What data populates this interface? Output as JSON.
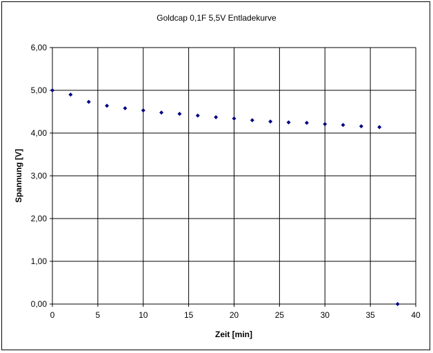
{
  "chart_data": {
    "type": "scatter",
    "title": "Goldcap 0,1F 5,5V Entladekurve",
    "xlabel": "Zeit [min]",
    "ylabel": "Spannung [V]",
    "xlim": [
      0,
      40
    ],
    "ylim": [
      0,
      6
    ],
    "xticks": [
      0,
      5,
      10,
      15,
      20,
      25,
      30,
      35,
      40
    ],
    "yticks": [
      0,
      1,
      2,
      3,
      4,
      5,
      6
    ],
    "x_tick_labels": [
      "0",
      "5",
      "10",
      "15",
      "20",
      "25",
      "30",
      "35",
      "40"
    ],
    "y_tick_labels": [
      "0,00",
      "1,00",
      "2,00",
      "3,00",
      "4,00",
      "5,00",
      "6,00"
    ],
    "grid": true,
    "legend": "none",
    "marker": "diamond",
    "marker_color": "#000080",
    "series": [
      {
        "points": [
          [
            0,
            5.0
          ],
          [
            2,
            4.9
          ],
          [
            4,
            4.73
          ],
          [
            6,
            4.64
          ],
          [
            8,
            4.58
          ],
          [
            10,
            4.53
          ],
          [
            12,
            4.48
          ],
          [
            14,
            4.45
          ],
          [
            16,
            4.41
          ],
          [
            18,
            4.37
          ],
          [
            20,
            4.34
          ],
          [
            22,
            4.3
          ],
          [
            24,
            4.27
          ],
          [
            26,
            4.25
          ],
          [
            28,
            4.24
          ],
          [
            30,
            4.21
          ],
          [
            32,
            4.19
          ],
          [
            34,
            4.16
          ],
          [
            36,
            4.14
          ],
          [
            38,
            0.0
          ]
        ]
      }
    ]
  }
}
